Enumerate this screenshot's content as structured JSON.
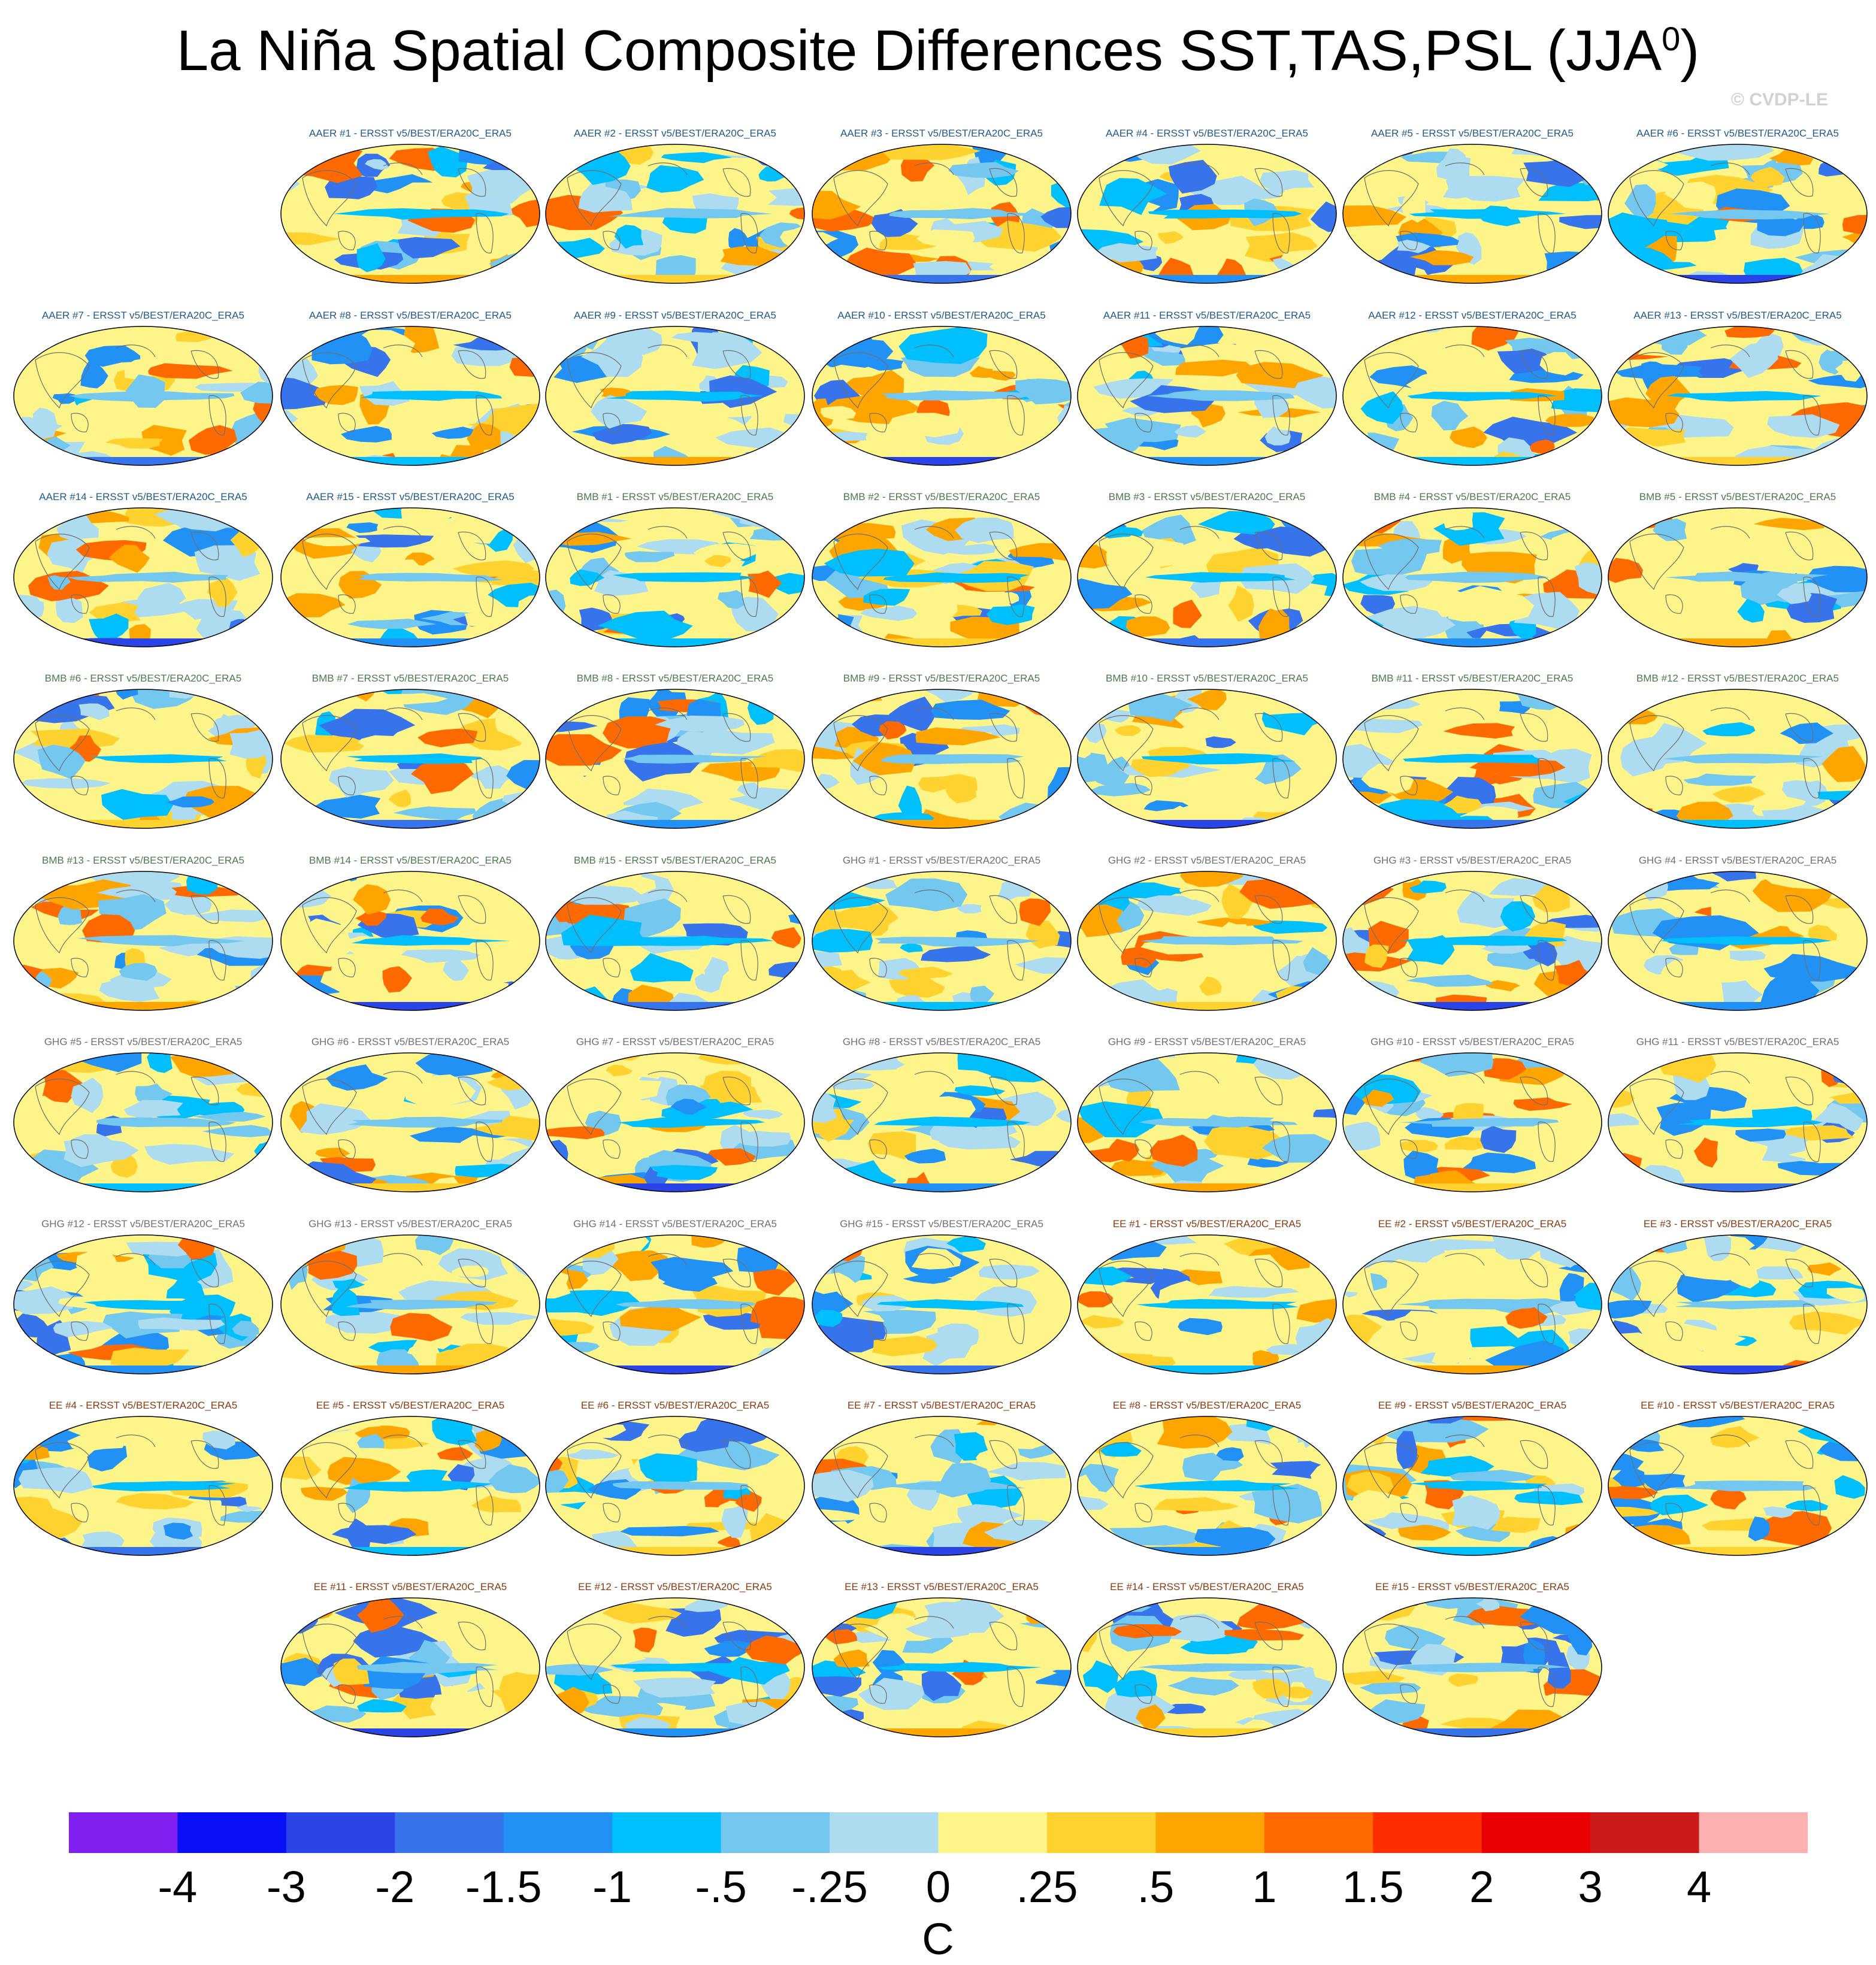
{
  "title_main": "La Niña Spatial Composite Differences SST,TAS,PSL (JJA",
  "title_sup": "0",
  "title_close": ")",
  "copyright": "© CVDP-LE",
  "group_colors": {
    "AAER": "#1f5a8c",
    "BMB": "#4b7a4b",
    "GHG": "#707070",
    "EE": "#8a3b12"
  },
  "panels": [
    "AAER #1 - ERSST v5/BEST/ERA20C_ERA5",
    "AAER #2 - ERSST v5/BEST/ERA20C_ERA5",
    "AAER #3 - ERSST v5/BEST/ERA20C_ERA5",
    "AAER #4 - ERSST v5/BEST/ERA20C_ERA5",
    "AAER #5 - ERSST v5/BEST/ERA20C_ERA5",
    "AAER #6 - ERSST v5/BEST/ERA20C_ERA5",
    "AAER #7 - ERSST v5/BEST/ERA20C_ERA5",
    "AAER #8 - ERSST v5/BEST/ERA20C_ERA5",
    "AAER #9 - ERSST v5/BEST/ERA20C_ERA5",
    "AAER #10 - ERSST v5/BEST/ERA20C_ERA5",
    "AAER #11 - ERSST v5/BEST/ERA20C_ERA5",
    "AAER #12 - ERSST v5/BEST/ERA20C_ERA5",
    "AAER #13 - ERSST v5/BEST/ERA20C_ERA5",
    "AAER #14 - ERSST v5/BEST/ERA20C_ERA5",
    "AAER #15 - ERSST v5/BEST/ERA20C_ERA5",
    "BMB #1 - ERSST v5/BEST/ERA20C_ERA5",
    "BMB #2 - ERSST v5/BEST/ERA20C_ERA5",
    "BMB #3 - ERSST v5/BEST/ERA20C_ERA5",
    "BMB #4 - ERSST v5/BEST/ERA20C_ERA5",
    "BMB #5 - ERSST v5/BEST/ERA20C_ERA5",
    "BMB #6 - ERSST v5/BEST/ERA20C_ERA5",
    "BMB #7 - ERSST v5/BEST/ERA20C_ERA5",
    "BMB #8 - ERSST v5/BEST/ERA20C_ERA5",
    "BMB #9 - ERSST v5/BEST/ERA20C_ERA5",
    "BMB #10 - ERSST v5/BEST/ERA20C_ERA5",
    "BMB #11 - ERSST v5/BEST/ERA20C_ERA5",
    "BMB #12 - ERSST v5/BEST/ERA20C_ERA5",
    "BMB #13 - ERSST v5/BEST/ERA20C_ERA5",
    "BMB #14 - ERSST v5/BEST/ERA20C_ERA5",
    "BMB #15 - ERSST v5/BEST/ERA20C_ERA5",
    "GHG #1 - ERSST v5/BEST/ERA20C_ERA5",
    "GHG #2 - ERSST v5/BEST/ERA20C_ERA5",
    "GHG #3 - ERSST v5/BEST/ERA20C_ERA5",
    "GHG #4 - ERSST v5/BEST/ERA20C_ERA5",
    "GHG #5 - ERSST v5/BEST/ERA20C_ERA5",
    "GHG #6 - ERSST v5/BEST/ERA20C_ERA5",
    "GHG #7 - ERSST v5/BEST/ERA20C_ERA5",
    "GHG #8 - ERSST v5/BEST/ERA20C_ERA5",
    "GHG #9 - ERSST v5/BEST/ERA20C_ERA5",
    "GHG #10 - ERSST v5/BEST/ERA20C_ERA5",
    "GHG #11 - ERSST v5/BEST/ERA20C_ERA5",
    "GHG #12 - ERSST v5/BEST/ERA20C_ERA5",
    "GHG #13 - ERSST v5/BEST/ERA20C_ERA5",
    "GHG #14 - ERSST v5/BEST/ERA20C_ERA5",
    "GHG #15 - ERSST v5/BEST/ERA20C_ERA5",
    "EE #1 - ERSST v5/BEST/ERA20C_ERA5",
    "EE #2 - ERSST v5/BEST/ERA20C_ERA5",
    "EE #3 - ERSST v5/BEST/ERA20C_ERA5",
    "EE #4 - ERSST v5/BEST/ERA20C_ERA5",
    "EE #5 - ERSST v5/BEST/ERA20C_ERA5",
    "EE #6 - ERSST v5/BEST/ERA20C_ERA5",
    "EE #7 - ERSST v5/BEST/ERA20C_ERA5",
    "EE #8 - ERSST v5/BEST/ERA20C_ERA5",
    "EE #9 - ERSST v5/BEST/ERA20C_ERA5",
    "EE #10 - ERSST v5/BEST/ERA20C_ERA5",
    "EE #11 - ERSST v5/BEST/ERA20C_ERA5",
    "EE #12 - ERSST v5/BEST/ERA20C_ERA5",
    "EE #13 - ERSST v5/BEST/ERA20C_ERA5",
    "EE #14 - ERSST v5/BEST/ERA20C_ERA5",
    "EE #15 - ERSST v5/BEST/ERA20C_ERA5"
  ],
  "chart_data": {
    "type": "heatmap",
    "variable": "SST,TAS,PSL composite difference",
    "season": "JJA",
    "projection": "robinson",
    "colorbar": {
      "units": "C",
      "tick_labels": [
        "-4",
        "-3",
        "-2",
        "-1.5",
        "-1",
        "-.5",
        "-.25",
        "0",
        ".25",
        ".5",
        "1",
        "1.5",
        "2",
        "3",
        "4"
      ],
      "levels": [
        -4,
        -3,
        -2,
        -1.5,
        -1,
        -0.5,
        -0.25,
        0,
        0.25,
        0.5,
        1,
        1.5,
        2,
        3,
        4
      ],
      "colors": [
        "#7f1ff0",
        "#0a10f5",
        "#2a44e8",
        "#3773ea",
        "#2191f5",
        "#00bfff",
        "#74c7ee",
        "#addbf0",
        "#fdf58a",
        "#ffd22f",
        "#ffa500",
        "#ff6a00",
        "#ff2e00",
        "#e80000",
        "#cc1a1a",
        "#ffb0b0"
      ]
    }
  }
}
